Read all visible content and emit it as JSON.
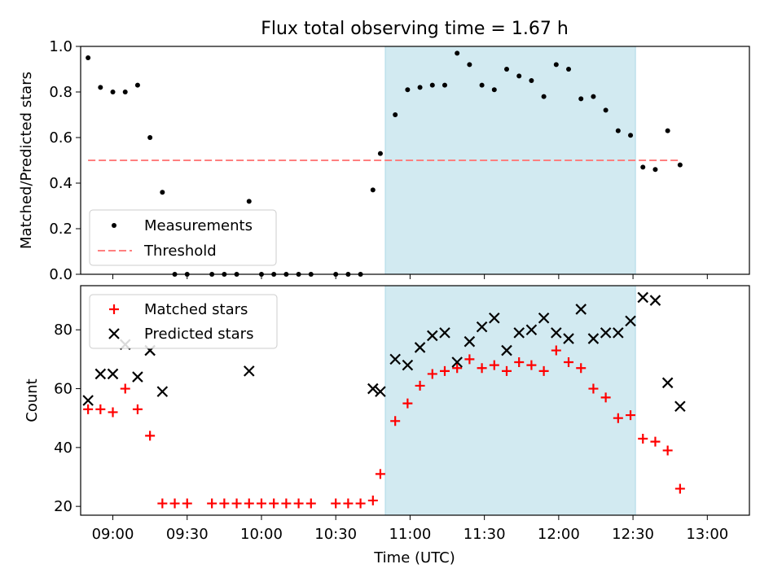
{
  "title": "Flux total observing time = 1.67 h",
  "colors": {
    "measurement": "#000000",
    "threshold": "#ff7f7f",
    "matched": "#ff0000",
    "predicted": "#000000",
    "shade": "#add8e6"
  },
  "chart_data": [
    {
      "type": "scatter",
      "title": "Flux total observing time = 1.67 h",
      "xlabel": "",
      "ylabel": "Matched/Predicted stars",
      "xlim": [
        527,
        797
      ],
      "ylim": [
        0,
        1.0
      ],
      "yticks": [
        0.0,
        0.2,
        0.4,
        0.6,
        0.8,
        1.0
      ],
      "ytick_labels": [
        "0.0",
        "0.2",
        "0.4",
        "0.6",
        "0.8",
        "1.0"
      ],
      "legend": "lower-left",
      "shaded_x_range": [
        "10:50",
        "12:31"
      ],
      "series": [
        {
          "name": "Measurements",
          "marker": "dot",
          "x": [
            "08:50",
            "08:55",
            "09:00",
            "09:05",
            "09:10",
            "09:15",
            "09:20",
            "09:25",
            "09:30",
            "09:40",
            "09:45",
            "09:50",
            "09:55",
            "10:00",
            "10:05",
            "10:10",
            "10:15",
            "10:20",
            "10:30",
            "10:35",
            "10:40",
            "10:45",
            "10:48",
            "10:54",
            "10:59",
            "11:04",
            "11:09",
            "11:14",
            "11:19",
            "11:24",
            "11:29",
            "11:34",
            "11:39",
            "11:44",
            "11:49",
            "11:54",
            "11:59",
            "12:04",
            "12:09",
            "12:14",
            "12:19",
            "12:24",
            "12:29",
            "12:34",
            "12:39",
            "12:44",
            "12:49"
          ],
          "y": [
            0.95,
            0.82,
            0.8,
            0.8,
            0.83,
            0.6,
            0.36,
            0.0,
            0.0,
            0.0,
            0.0,
            0.0,
            0.32,
            0.0,
            0.0,
            0.0,
            0.0,
            0.0,
            0.0,
            0.0,
            0.0,
            0.37,
            0.53,
            0.7,
            0.81,
            0.82,
            0.83,
            0.83,
            0.97,
            0.92,
            0.83,
            0.81,
            0.9,
            0.87,
            0.85,
            0.78,
            0.92,
            0.9,
            0.77,
            0.78,
            0.72,
            0.63,
            0.61,
            0.47,
            0.46,
            0.63,
            0.48
          ]
        },
        {
          "name": "Threshold",
          "style": "dashed-line",
          "x": [
            "08:50",
            "12:49"
          ],
          "y": [
            0.5,
            0.5
          ]
        }
      ]
    },
    {
      "type": "scatter",
      "xlabel": "Time (UTC)",
      "ylabel": "Count",
      "xlim": [
        527,
        797
      ],
      "ylim": [
        17,
        95
      ],
      "yticks": [
        20,
        40,
        60,
        80
      ],
      "xticks": [
        "09:00",
        "09:30",
        "10:00",
        "10:30",
        "11:00",
        "11:30",
        "12:00",
        "12:30",
        "13:00"
      ],
      "legend": "upper-left",
      "shaded_x_range": [
        "10:50",
        "12:31"
      ],
      "series": [
        {
          "name": "Matched stars",
          "marker": "plus",
          "x": [
            "08:50",
            "08:55",
            "09:00",
            "09:05",
            "09:10",
            "09:15",
            "09:20",
            "09:25",
            "09:30",
            "09:40",
            "09:45",
            "09:50",
            "09:55",
            "10:00",
            "10:05",
            "10:10",
            "10:15",
            "10:20",
            "10:30",
            "10:35",
            "10:40",
            "10:45",
            "10:48",
            "10:54",
            "10:59",
            "11:04",
            "11:09",
            "11:14",
            "11:19",
            "11:24",
            "11:29",
            "11:34",
            "11:39",
            "11:44",
            "11:49",
            "11:54",
            "11:59",
            "12:04",
            "12:09",
            "12:14",
            "12:19",
            "12:24",
            "12:29",
            "12:34",
            "12:39",
            "12:44",
            "12:49"
          ],
          "y": [
            53,
            53,
            52,
            60,
            53,
            44,
            21,
            21,
            21,
            21,
            21,
            21,
            21,
            21,
            21,
            21,
            21,
            21,
            21,
            21,
            21,
            22,
            31,
            49,
            55,
            61,
            65,
            66,
            67,
            70,
            67,
            68,
            66,
            69,
            68,
            66,
            73,
            69,
            67,
            60,
            57,
            50,
            51,
            43,
            42,
            39,
            26
          ]
        },
        {
          "name": "Predicted stars",
          "marker": "x",
          "x": [
            "08:50",
            "08:55",
            "09:00",
            "09:05",
            "09:10",
            "09:15",
            "09:20",
            "09:55",
            "10:45",
            "10:48",
            "10:54",
            "10:59",
            "11:04",
            "11:09",
            "11:14",
            "11:19",
            "11:24",
            "11:29",
            "11:34",
            "11:39",
            "11:44",
            "11:49",
            "11:54",
            "11:59",
            "12:04",
            "12:09",
            "12:14",
            "12:19",
            "12:24",
            "12:29",
            "12:34",
            "12:39",
            "12:44",
            "12:49"
          ],
          "y": [
            56,
            65,
            65,
            75,
            64,
            73,
            59,
            66,
            60,
            59,
            70,
            68,
            74,
            78,
            79,
            69,
            76,
            81,
            84,
            73,
            79,
            80,
            84,
            79,
            77,
            87,
            77,
            79,
            79,
            83,
            91,
            90,
            62,
            54
          ]
        }
      ]
    }
  ]
}
